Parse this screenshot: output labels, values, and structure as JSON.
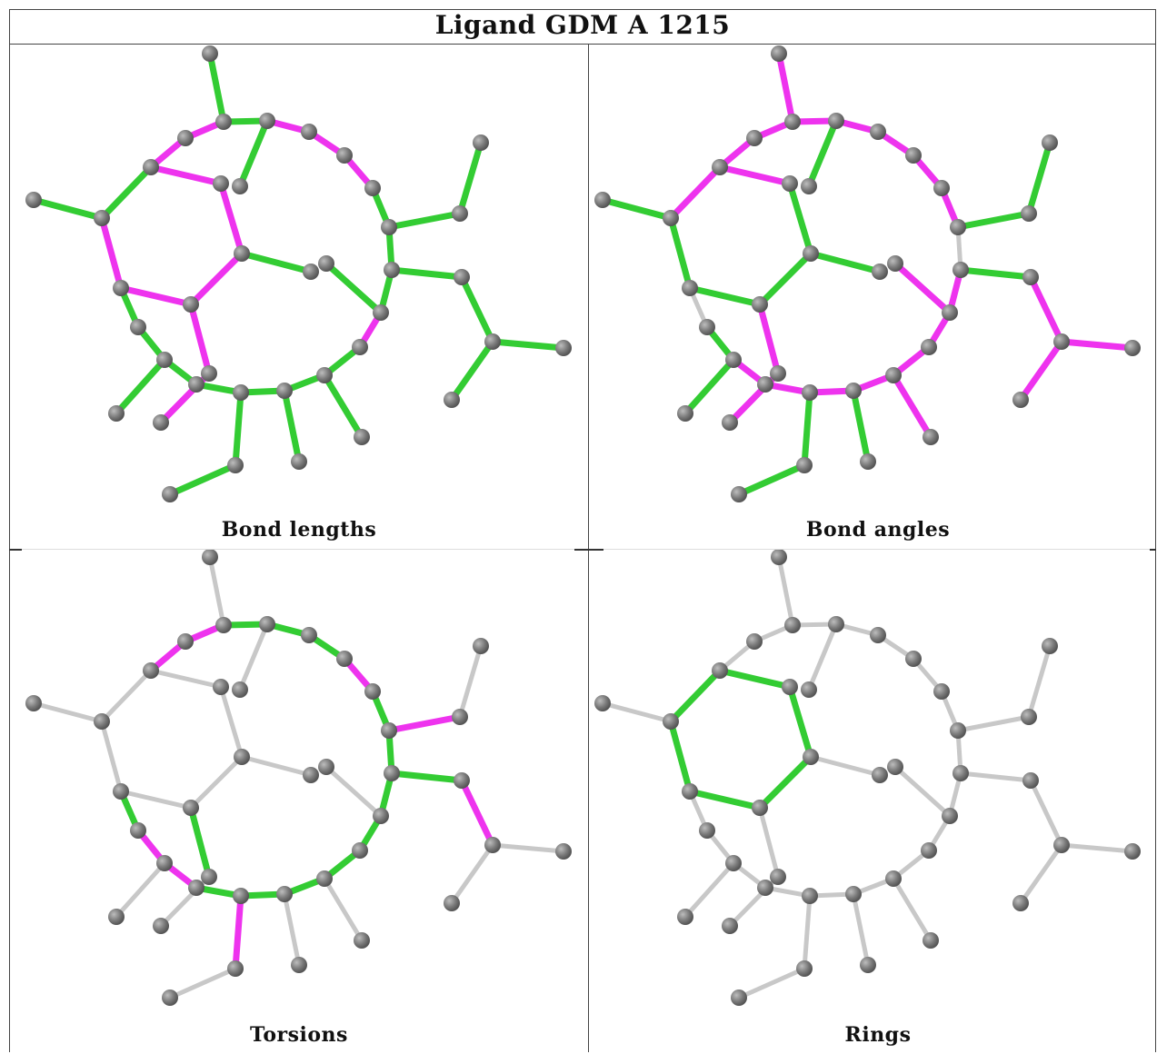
{
  "title": "Ligand GDM A 1215",
  "colors": {
    "good": "#33cc33",
    "outlier": "#ee33ee",
    "neutral": "#c8c8c8",
    "atom": "#777777"
  },
  "panels": [
    {
      "id": "bond-lengths",
      "caption": "Bond lengths"
    },
    {
      "id": "bond-angles",
      "caption": "Bond angles"
    },
    {
      "id": "torsions",
      "caption": "Torsions"
    },
    {
      "id": "rings",
      "caption": "Rings"
    }
  ]
}
